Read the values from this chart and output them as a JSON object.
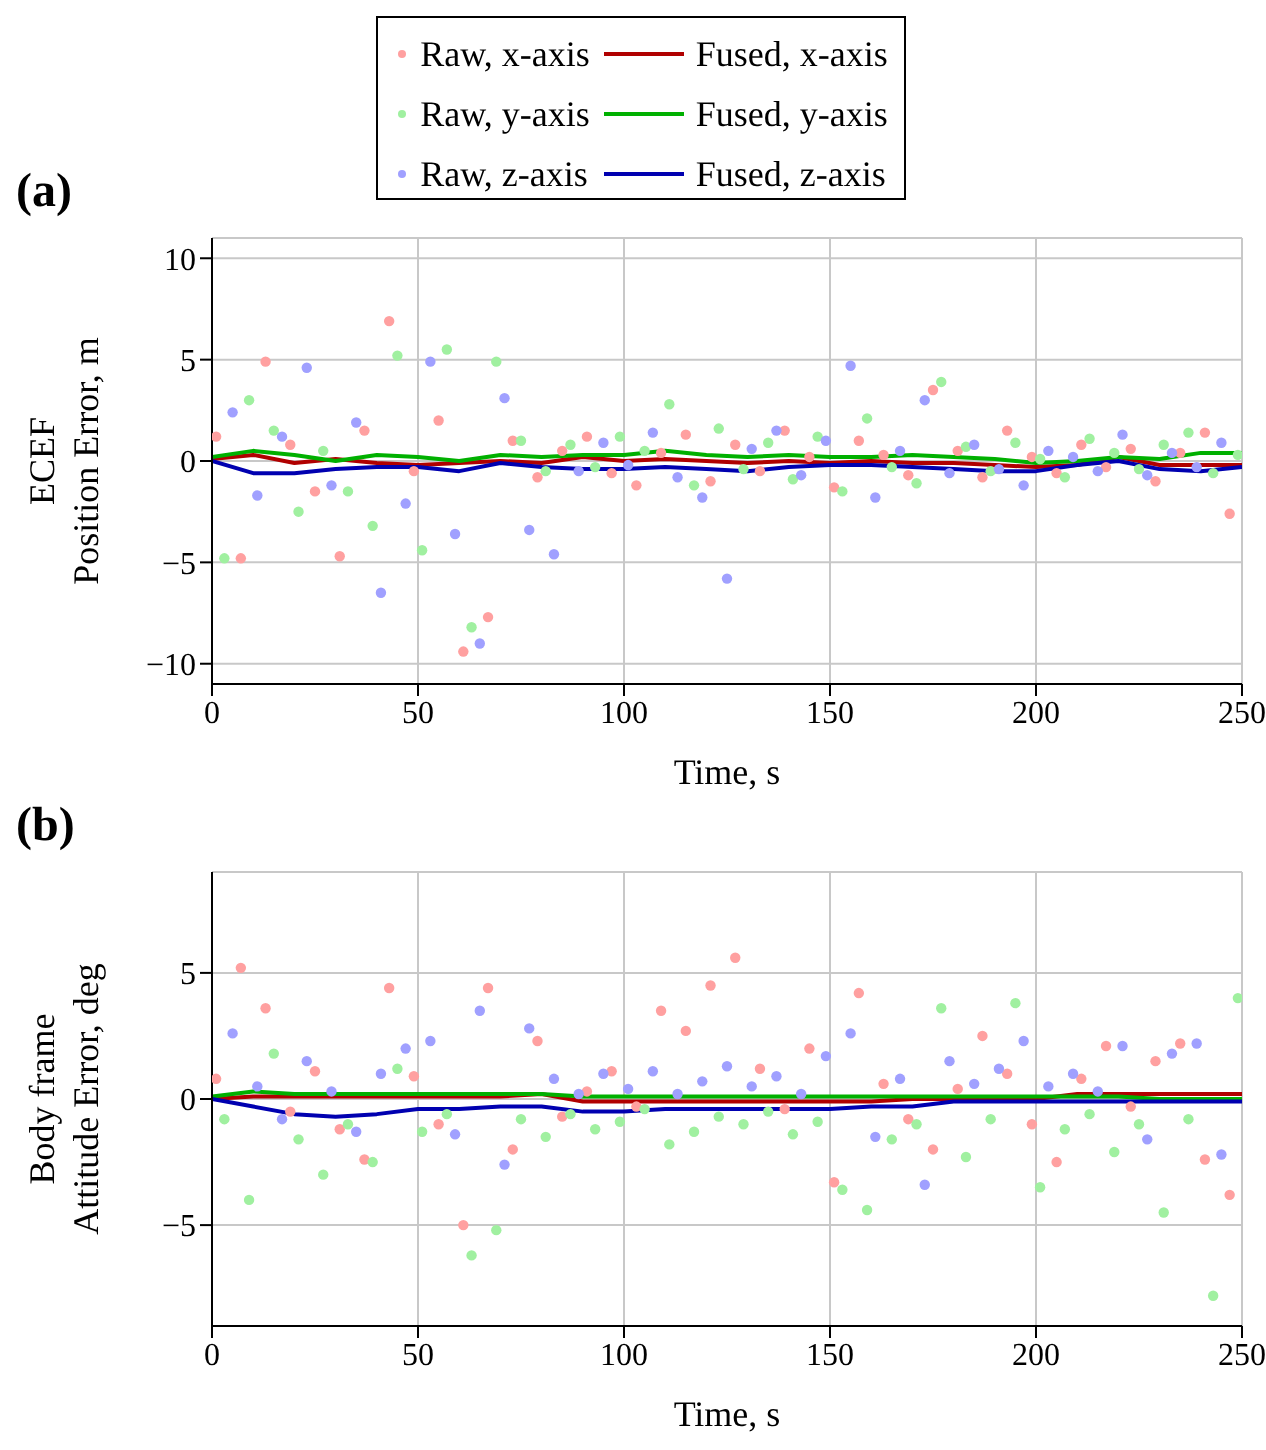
{
  "chart_data": [
    {
      "type": "scatter",
      "title": "(a)",
      "xlabel": "Time, s",
      "ylabel": "ECEF\nPosition Error, m",
      "xlim": [
        0,
        250
      ],
      "xticks": [
        0,
        50,
        100,
        150,
        200,
        250
      ],
      "ylim": [
        -11,
        11
      ],
      "yticks": [
        -10,
        -5,
        0,
        5,
        10
      ],
      "grid": true,
      "legend": "top",
      "line_style": "solid",
      "series": [
        {
          "name": "Raw, x-axis",
          "marker": "circle",
          "color": "#ffa0a0",
          "x": [
            1,
            7,
            13,
            19,
            25,
            31,
            37,
            43,
            49,
            55,
            61,
            67,
            73,
            79,
            85,
            91,
            97,
            103,
            109,
            115,
            121,
            127,
            133,
            139,
            145,
            151,
            157,
            163,
            169,
            175,
            181,
            187,
            193,
            199,
            205,
            211,
            217,
            223,
            229,
            235,
            241,
            247
          ],
          "values": [
            1.2,
            -4.8,
            4.9,
            0.8,
            -1.5,
            -4.7,
            1.5,
            6.9,
            -0.5,
            2.0,
            -9.4,
            -7.7,
            1.0,
            -0.8,
            0.5,
            1.2,
            -0.6,
            -1.2,
            0.4,
            1.3,
            -1.0,
            0.8,
            -0.5,
            1.5,
            0.2,
            -1.3,
            1.0,
            0.3,
            -0.7,
            3.5,
            0.5,
            -0.8,
            1.5,
            0.2,
            -0.6,
            0.8,
            -0.3,
            0.6,
            -1.0,
            0.4,
            1.4,
            -2.6
          ]
        },
        {
          "name": "Raw, y-axis",
          "marker": "circle",
          "color": "#a0f0a0",
          "x": [
            3,
            9,
            15,
            21,
            27,
            33,
            39,
            45,
            51,
            57,
            63,
            69,
            75,
            81,
            87,
            93,
            99,
            105,
            111,
            117,
            123,
            129,
            135,
            141,
            147,
            153,
            159,
            165,
            171,
            177,
            183,
            189,
            195,
            201,
            207,
            213,
            219,
            225,
            231,
            237,
            243,
            249
          ],
          "values": [
            -4.8,
            3.0,
            1.5,
            -2.5,
            0.5,
            -1.5,
            -3.2,
            5.2,
            -4.4,
            5.5,
            -8.2,
            4.9,
            1.0,
            -0.5,
            0.8,
            -0.3,
            1.2,
            0.5,
            2.8,
            -1.2,
            1.6,
            -0.4,
            0.9,
            -0.9,
            1.2,
            -1.5,
            2.1,
            -0.3,
            -1.1,
            3.9,
            0.7,
            -0.5,
            0.9,
            0.1,
            -0.8,
            1.1,
            0.4,
            -0.4,
            0.8,
            1.4,
            -0.6,
            0.3
          ]
        },
        {
          "name": "Raw, z-axis",
          "marker": "circle",
          "color": "#a0a0ff",
          "x": [
            5,
            11,
            17,
            23,
            29,
            35,
            41,
            47,
            53,
            59,
            65,
            71,
            77,
            83,
            89,
            95,
            101,
            107,
            113,
            119,
            125,
            131,
            137,
            143,
            149,
            155,
            161,
            167,
            173,
            179,
            185,
            191,
            197,
            203,
            209,
            215,
            221,
            227,
            233,
            239,
            245
          ],
          "values": [
            2.4,
            -1.7,
            1.2,
            4.6,
            -1.2,
            1.9,
            -6.5,
            -2.1,
            4.9,
            -3.6,
            -9.0,
            3.1,
            -3.4,
            -4.6,
            -0.5,
            0.9,
            -0.2,
            1.4,
            -0.8,
            -1.8,
            -5.8,
            0.6,
            1.5,
            -0.7,
            1.0,
            4.7,
            -1.8,
            0.5,
            3.0,
            -0.6,
            0.8,
            -0.4,
            -1.2,
            0.5,
            0.2,
            -0.5,
            1.3,
            -0.7,
            0.4,
            -0.3,
            0.9
          ]
        },
        {
          "name": "Fused, x-axis",
          "type": "line",
          "marker": "none",
          "color": "#b00000",
          "x": [
            0,
            10,
            20,
            30,
            40,
            50,
            60,
            70,
            80,
            90,
            100,
            110,
            120,
            130,
            140,
            150,
            160,
            170,
            180,
            190,
            200,
            210,
            220,
            230,
            240,
            250
          ],
          "values": [
            0.1,
            0.3,
            -0.1,
            0.1,
            -0.1,
            -0.2,
            -0.1,
            0.0,
            -0.1,
            0.2,
            0.0,
            0.1,
            0.0,
            -0.1,
            0.0,
            -0.1,
            0.0,
            -0.1,
            -0.1,
            -0.2,
            -0.3,
            -0.2,
            0.2,
            -0.2,
            -0.2,
            -0.2
          ]
        },
        {
          "name": "Fused, y-axis",
          "type": "line",
          "marker": "none",
          "color": "#00b000",
          "x": [
            0,
            10,
            20,
            30,
            40,
            50,
            60,
            70,
            80,
            90,
            100,
            110,
            120,
            130,
            140,
            150,
            160,
            170,
            180,
            190,
            200,
            210,
            220,
            230,
            240,
            250
          ],
          "values": [
            0.2,
            0.5,
            0.3,
            0.0,
            0.3,
            0.2,
            0.0,
            0.3,
            0.2,
            0.3,
            0.3,
            0.5,
            0.3,
            0.2,
            0.3,
            0.2,
            0.2,
            0.3,
            0.2,
            0.1,
            -0.1,
            0.0,
            0.2,
            0.1,
            0.4,
            0.4
          ]
        },
        {
          "name": "Fused, z-axis",
          "type": "line",
          "marker": "none",
          "color": "#0000b0",
          "x": [
            0,
            10,
            20,
            30,
            40,
            50,
            60,
            70,
            80,
            90,
            100,
            110,
            120,
            130,
            140,
            150,
            160,
            170,
            180,
            190,
            200,
            210,
            220,
            230,
            240,
            250
          ],
          "values": [
            0.0,
            -0.6,
            -0.6,
            -0.4,
            -0.3,
            -0.3,
            -0.5,
            -0.1,
            -0.3,
            -0.4,
            -0.4,
            -0.3,
            -0.4,
            -0.5,
            -0.3,
            -0.2,
            -0.2,
            -0.3,
            -0.4,
            -0.5,
            -0.5,
            -0.2,
            0.0,
            -0.4,
            -0.5,
            -0.3
          ]
        }
      ]
    },
    {
      "type": "scatter",
      "title": "(b)",
      "xlabel": "Time, s",
      "ylabel": "Body frame\nAttitude Error, deg",
      "xlim": [
        0,
        250
      ],
      "xticks": [
        0,
        50,
        100,
        150,
        200,
        250
      ],
      "ylim": [
        -9,
        9
      ],
      "yticks": [
        -5,
        0,
        5
      ],
      "grid": true,
      "line_style": "solid",
      "series": [
        {
          "marker": "circle",
          "color": "#ffa0a0",
          "x": [
            1,
            7,
            13,
            19,
            25,
            31,
            37,
            43,
            49,
            55,
            61,
            67,
            73,
            79,
            85,
            91,
            97,
            103,
            109,
            115,
            121,
            127,
            133,
            139,
            145,
            151,
            157,
            163,
            169,
            175,
            181,
            187,
            193,
            199,
            205,
            211,
            217,
            223,
            229,
            235,
            241,
            247
          ],
          "values": [
            0.8,
            5.2,
            3.6,
            -0.5,
            1.1,
            -1.2,
            -2.4,
            4.4,
            0.9,
            -1.0,
            -5.0,
            4.4,
            -2.0,
            2.3,
            -0.7,
            0.3,
            1.1,
            -0.3,
            3.5,
            2.7,
            4.5,
            5.6,
            1.2,
            -0.4,
            2.0,
            -3.3,
            4.2,
            0.6,
            -0.8,
            -2.0,
            0.4,
            2.5,
            1.0,
            -1.0,
            -2.5,
            0.8,
            2.1,
            -0.3,
            1.5,
            2.2,
            -2.4,
            -3.8
          ]
        },
        {
          "marker": "circle",
          "color": "#a0f0a0",
          "x": [
            3,
            9,
            15,
            21,
            27,
            33,
            39,
            45,
            51,
            57,
            63,
            69,
            75,
            81,
            87,
            93,
            99,
            105,
            111,
            117,
            123,
            129,
            135,
            141,
            147,
            153,
            159,
            165,
            171,
            177,
            183,
            189,
            195,
            201,
            207,
            213,
            219,
            225,
            231,
            237,
            243,
            249
          ],
          "values": [
            -0.8,
            -4.0,
            1.8,
            -1.6,
            -3.0,
            -1.0,
            -2.5,
            1.2,
            -1.3,
            -0.6,
            -6.2,
            -5.2,
            -0.8,
            -1.5,
            -0.6,
            -1.2,
            -0.9,
            -0.4,
            -1.8,
            -1.3,
            -0.7,
            -1.0,
            -0.5,
            -1.4,
            -0.9,
            -3.6,
            -4.4,
            -1.6,
            -1.0,
            3.6,
            -2.3,
            -0.8,
            3.8,
            -3.5,
            -1.2,
            -0.6,
            -2.1,
            -1.0,
            -4.5,
            -0.8,
            -7.8,
            4.0
          ]
        },
        {
          "marker": "circle",
          "color": "#a0a0ff",
          "x": [
            5,
            11,
            17,
            23,
            29,
            35,
            41,
            47,
            53,
            59,
            65,
            71,
            77,
            83,
            89,
            95,
            101,
            107,
            113,
            119,
            125,
            131,
            137,
            143,
            149,
            155,
            161,
            167,
            173,
            179,
            185,
            191,
            197,
            203,
            209,
            215,
            221,
            227,
            233,
            239,
            245
          ],
          "values": [
            2.6,
            0.5,
            -0.8,
            1.5,
            0.3,
            -1.3,
            1.0,
            2.0,
            2.3,
            -1.4,
            3.5,
            -2.6,
            2.8,
            0.8,
            0.2,
            1.0,
            0.4,
            1.1,
            0.2,
            0.7,
            1.3,
            0.5,
            0.9,
            0.2,
            1.7,
            2.6,
            -1.5,
            0.8,
            -3.4,
            1.5,
            0.6,
            1.2,
            2.3,
            0.5,
            1.0,
            0.3,
            2.1,
            -1.6,
            1.8,
            2.2,
            -2.2
          ]
        },
        {
          "type": "line",
          "marker": "none",
          "color": "#b00000",
          "x": [
            0,
            10,
            20,
            30,
            40,
            50,
            60,
            70,
            80,
            90,
            100,
            110,
            120,
            130,
            140,
            150,
            160,
            170,
            180,
            190,
            200,
            210,
            220,
            230,
            240,
            250
          ],
          "values": [
            0.0,
            0.1,
            0.1,
            0.1,
            0.1,
            0.1,
            0.1,
            0.1,
            0.2,
            -0.1,
            -0.1,
            -0.1,
            -0.1,
            -0.1,
            -0.1,
            -0.1,
            -0.1,
            0.0,
            0.0,
            0.0,
            0.0,
            0.2,
            0.2,
            0.2,
            0.2,
            0.2
          ]
        },
        {
          "type": "line",
          "marker": "none",
          "color": "#00b000",
          "x": [
            0,
            10,
            20,
            30,
            40,
            50,
            60,
            70,
            80,
            90,
            100,
            110,
            120,
            130,
            140,
            150,
            160,
            170,
            180,
            190,
            200,
            210,
            220,
            230,
            240,
            250
          ],
          "values": [
            0.1,
            0.3,
            0.2,
            0.2,
            0.2,
            0.2,
            0.2,
            0.2,
            0.2,
            0.1,
            0.1,
            0.1,
            0.1,
            0.1,
            0.1,
            0.1,
            0.1,
            0.1,
            0.1,
            0.1,
            0.1,
            0.1,
            0.1,
            0.0,
            0.0,
            0.0
          ]
        },
        {
          "type": "line",
          "marker": "none",
          "color": "#0000b0",
          "x": [
            0,
            10,
            20,
            30,
            40,
            50,
            60,
            70,
            80,
            90,
            100,
            110,
            120,
            130,
            140,
            150,
            160,
            170,
            180,
            190,
            200,
            210,
            220,
            230,
            240,
            250
          ],
          "values": [
            0.0,
            -0.3,
            -0.6,
            -0.7,
            -0.6,
            -0.4,
            -0.4,
            -0.3,
            -0.3,
            -0.5,
            -0.5,
            -0.4,
            -0.4,
            -0.4,
            -0.4,
            -0.4,
            -0.3,
            -0.3,
            -0.1,
            -0.1,
            -0.1,
            -0.1,
            -0.1,
            -0.1,
            -0.1,
            -0.1
          ]
        }
      ]
    }
  ]
}
